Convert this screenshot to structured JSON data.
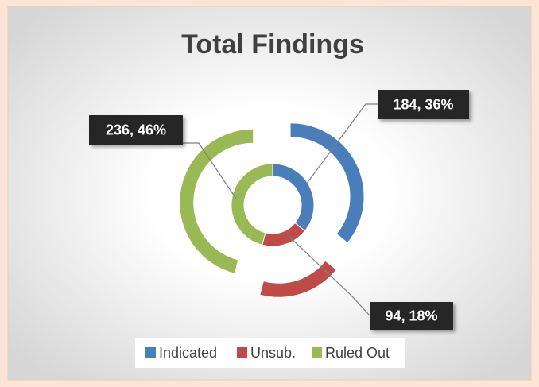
{
  "chart_data": {
    "type": "doughnut",
    "title": "Total Findings",
    "categories": [
      "Indicated",
      "Unsub.",
      "Ruled Out"
    ],
    "values": [
      184,
      94,
      236
    ],
    "value_labels": [
      "184, 36%",
      "94, 18%",
      "236, 46%"
    ],
    "colors": [
      "#4a7ebb",
      "#be4b48",
      "#98b954"
    ],
    "legend": "bottom"
  }
}
